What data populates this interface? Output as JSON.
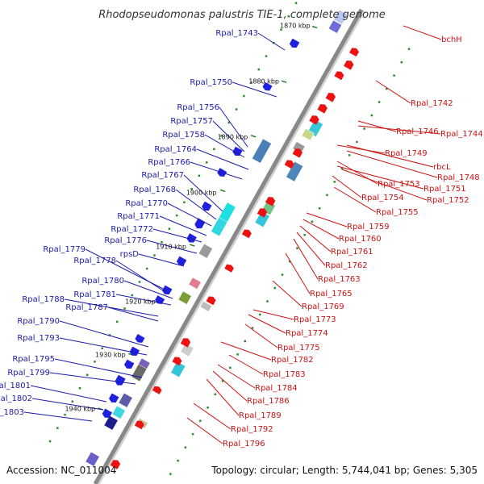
{
  "title": "Rhodopseudomonas palustris TIE-1, complete genome",
  "footer": {
    "accession": "Accession: NC_011004",
    "summary": "Topology: circular; Length: 5,744,041 bp; Genes: 5,305"
  },
  "scale_labels": [
    "1870 kbp",
    "1880 kbp",
    "1890 kbp",
    "1900 kbp",
    "1910 kbp",
    "1920 kbp",
    "1930 kbp",
    "1940 kbp"
  ],
  "left_labels": [
    "Rpal_1743",
    "Rpal_1750",
    "Rpal_1756",
    "Rpal_1757",
    "Rpal_1758",
    "Rpal_1764",
    "Rpal_1766",
    "Rpal_1767",
    "Rpal_1768",
    "Rpal_1770",
    "Rpal_1771",
    "Rpal_1772",
    "Rpal_1776",
    "rpsD",
    "Rpal_1779",
    "Rpal_1778",
    "Rpal_1780",
    "Rpal_1781",
    "Rpal_1788",
    "Rpal_1787",
    "Rpal_1790",
    "Rpal_1793",
    "Rpal_1795",
    "Rpal_1799",
    "Rpal_1801",
    "Rpal_1802",
    "Rpal_1803"
  ],
  "right_labels": [
    "bchH",
    "Rpal_1742",
    "Rpal_1746",
    "Rpal_1744",
    "Rpal_1749",
    "rbcL",
    "Rpal_1748",
    "Rpal_1753",
    "Rpal_1751",
    "Rpal_1752",
    "Rpal_1754",
    "Rpal_1755",
    "Rpal_1759",
    "Rpal_1760",
    "Rpal_1761",
    "Rpal_1762",
    "Rpal_1763",
    "Rpal_1765",
    "Rpal_1769",
    "Rpal_1773",
    "Rpal_1774",
    "Rpal_1775",
    "Rpal_1782",
    "Rpal_1783",
    "Rpal_1784",
    "Rpal_1786",
    "Rpal_1789",
    "Rpal_1792",
    "Rpal_1796"
  ],
  "colors": {
    "forward_gene": "#1f1fe0",
    "reverse_gene": "#ee1111",
    "backbone": "#888888",
    "left_leader": "#1a1aa8",
    "right_leader": "#cc1111",
    "gc_dot": "#2e8b2e"
  }
}
